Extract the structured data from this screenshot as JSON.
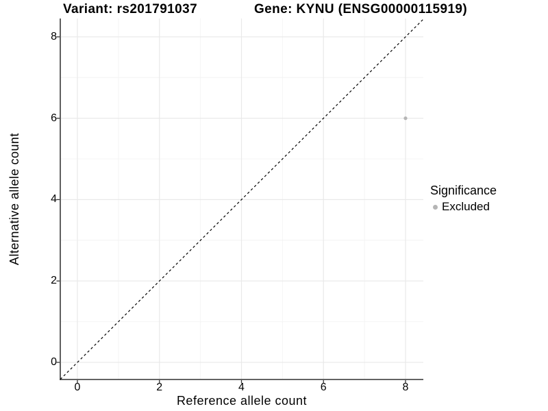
{
  "titles": {
    "variant": "Variant: rs201791037",
    "gene": "Gene: KYNU (ENSG00000115919)"
  },
  "axes": {
    "x_label": "Reference allele count",
    "y_label": "Alternative allele count"
  },
  "legend": {
    "title": "Significance",
    "items": [
      {
        "label": "Excluded",
        "color": "#b5b5b5"
      }
    ]
  },
  "chart_data": {
    "type": "scatter",
    "title": "Variant: rs201791037 / Gene: KYNU (ENSG00000115919)",
    "xlabel": "Reference allele count",
    "ylabel": "Alternative allele count",
    "xlim": [
      -0.42,
      8.45
    ],
    "ylim": [
      -0.42,
      8.45
    ],
    "x_ticks": [
      "0",
      "2",
      "4",
      "6",
      "8"
    ],
    "x_tick_values": [
      0,
      2,
      4,
      6,
      8
    ],
    "y_ticks": [
      "0",
      "2",
      "4",
      "6",
      "8"
    ],
    "y_tick_values": [
      0,
      2,
      4,
      6,
      8
    ],
    "gridlines_major": [
      0,
      2,
      4,
      6,
      8
    ],
    "gridlines_minor": [
      1,
      3,
      5,
      7
    ],
    "grid": true,
    "legend_position": "right",
    "series": [
      {
        "name": "Excluded",
        "points": [
          {
            "x": 8,
            "y": 6
          }
        ],
        "color": "#b5b5b5"
      }
    ],
    "reference_line": {
      "type": "identity",
      "slope": 1,
      "intercept": 0,
      "style": "dashed",
      "color": "#000000"
    },
    "colors": {
      "axis_line": "#4d4d4d",
      "tick_mark": "#333333",
      "grid_major": "#e9e9e9",
      "grid_minor": "#f4f4f4",
      "point": "#b5b5b5",
      "text": "#000000",
      "background": "#ffffff"
    }
  }
}
